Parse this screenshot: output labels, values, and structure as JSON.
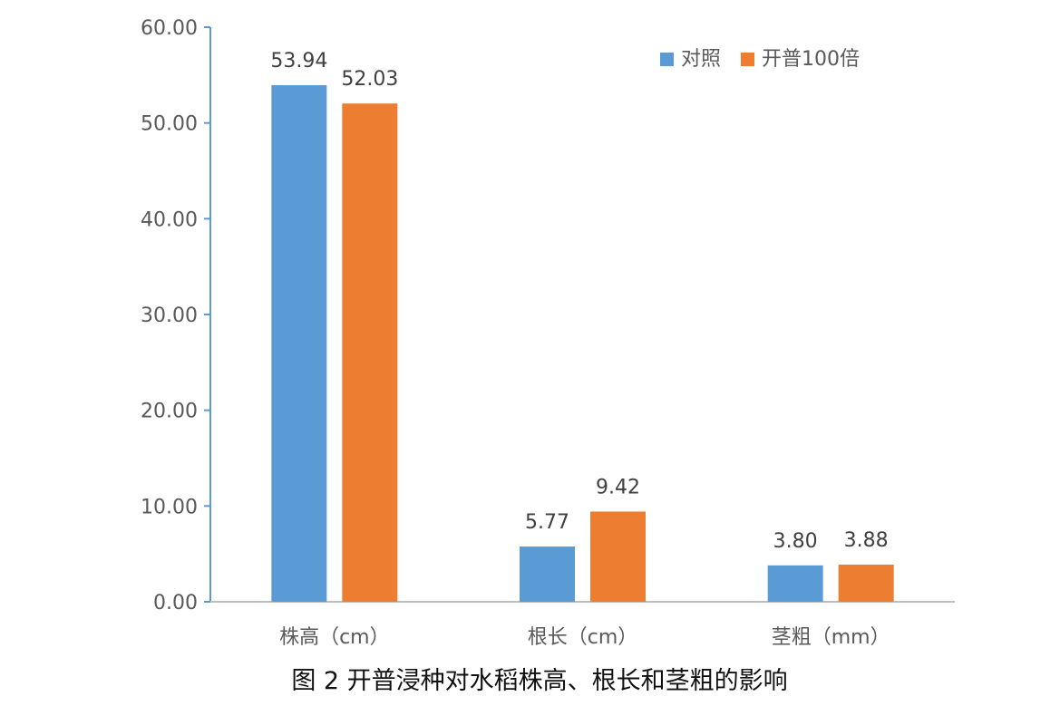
{
  "chart_data": {
    "type": "bar",
    "caption": "图 2  开普浸种对水稻株高、根长和茎粗的影响",
    "categories": [
      "株高（cm）",
      "根长（cm）",
      "茎粗（mm）"
    ],
    "series": [
      {
        "name": "对照",
        "values": [
          53.94,
          5.77,
          3.8
        ],
        "labels": [
          "53.94",
          "5.77",
          "3.80"
        ],
        "color": "#5B9BD5"
      },
      {
        "name": "开普100倍",
        "values": [
          52.03,
          9.42,
          3.88
        ],
        "labels": [
          "52.03",
          "9.42",
          "3.88"
        ],
        "color": "#ED7D31"
      }
    ],
    "ylim": [
      0,
      60
    ],
    "yticks": [
      "0.00",
      "10.00",
      "20.00",
      "30.00",
      "40.00",
      "50.00",
      "60.00"
    ],
    "grid": false,
    "legend_position": "top-right",
    "axis_color": "#5B9BD5"
  }
}
